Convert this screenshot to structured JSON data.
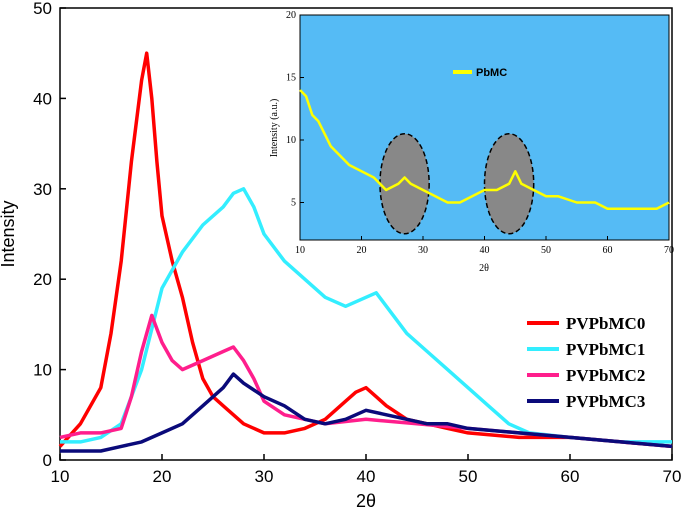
{
  "chart_data": [
    {
      "type": "line",
      "xlabel": "2θ",
      "ylabel": "Intensity",
      "xlim": [
        10,
        70
      ],
      "ylim": [
        0,
        50
      ],
      "xticks": [
        "10",
        "20",
        "30",
        "40",
        "50",
        "60",
        "70"
      ],
      "yticks": [
        "0",
        "10",
        "20",
        "30",
        "40",
        "50"
      ],
      "legend_position": "right-middle",
      "series": [
        {
          "name": "PVPbMC0",
          "color": "#ff0000",
          "x": [
            10,
            12,
            14,
            15,
            16,
            17,
            18,
            18.5,
            19,
            19.5,
            20,
            21,
            22,
            23,
            24,
            25,
            26,
            28,
            30,
            32,
            34,
            36,
            38,
            39,
            40,
            41,
            42,
            44,
            46,
            48,
            50,
            55,
            60,
            65,
            70
          ],
          "y": [
            1.5,
            4,
            8,
            14,
            22,
            33,
            42,
            45,
            40,
            33,
            27,
            22,
            18,
            13,
            9,
            7,
            6,
            4,
            3,
            3,
            3.5,
            4.5,
            6.5,
            7.5,
            8,
            7,
            6,
            4.5,
            4,
            3.5,
            3,
            2.5,
            2.5,
            2,
            1.5
          ]
        },
        {
          "name": "PVPbMC1",
          "color": "#33eeff",
          "x": [
            10,
            12,
            14,
            16,
            18,
            20,
            22,
            24,
            26,
            27,
            28,
            29,
            30,
            32,
            34,
            36,
            38,
            40,
            41,
            42,
            44,
            46,
            48,
            50,
            52,
            54,
            56,
            60,
            65,
            70
          ],
          "y": [
            2,
            2,
            2.5,
            4,
            10,
            19,
            23,
            26,
            28,
            29.5,
            30,
            28,
            25,
            22,
            20,
            18,
            17,
            18,
            18.5,
            17,
            14,
            12,
            10,
            8,
            6,
            4,
            3,
            2.5,
            2,
            2
          ]
        },
        {
          "name": "PVPbMC2",
          "color": "#ff1e8c",
          "x": [
            10,
            12,
            14,
            16,
            17,
            18,
            19,
            20,
            21,
            22,
            24,
            26,
            27,
            28,
            29,
            30,
            32,
            34,
            36,
            40,
            45,
            50,
            55,
            60,
            65,
            70
          ],
          "y": [
            2.5,
            3,
            3,
            3.5,
            7,
            12,
            16,
            13,
            11,
            10,
            11,
            12,
            12.5,
            11,
            9,
            6.5,
            5,
            4.5,
            4,
            4.5,
            4,
            3.5,
            3,
            2.5,
            2,
            1.5
          ]
        },
        {
          "name": "PVPbMC3",
          "color": "#0a0a7a",
          "x": [
            10,
            12,
            14,
            16,
            18,
            20,
            22,
            24,
            26,
            27,
            28,
            30,
            32,
            34,
            36,
            38,
            40,
            42,
            44,
            46,
            48,
            50,
            55,
            60,
            65,
            70
          ],
          "y": [
            1,
            1,
            1,
            1.5,
            2,
            3,
            4,
            6,
            8,
            9.5,
            8.5,
            7,
            6,
            4.5,
            4,
            4.5,
            5.5,
            5,
            4.5,
            4,
            4,
            3.5,
            3,
            2.5,
            2,
            1.5
          ]
        }
      ]
    },
    {
      "type": "line",
      "xlabel": "2θ",
      "ylabel": "Intensity (a.u.)",
      "xlim": [
        10,
        70
      ],
      "ylim": [
        2,
        20
      ],
      "xticks": [
        "10",
        "20",
        "30",
        "40",
        "50",
        "60",
        "70"
      ],
      "yticks": [
        "5",
        "10",
        "15",
        "20"
      ],
      "background": "#55bbf5",
      "legend_position": "top-left",
      "series": [
        {
          "name": "PbMC",
          "color": "#ffff00",
          "x": [
            10,
            11,
            12,
            13,
            14,
            15,
            16,
            17,
            18,
            20,
            22,
            24,
            26,
            27,
            28,
            30,
            32,
            34,
            36,
            38,
            40,
            42,
            44,
            45,
            46,
            48,
            50,
            52,
            55,
            58,
            60,
            62,
            65,
            68,
            70
          ],
          "y": [
            14,
            13.5,
            12,
            11.5,
            10.5,
            9.5,
            9,
            8.5,
            8,
            7.5,
            7,
            6,
            6.5,
            7,
            6.5,
            6,
            5.5,
            5,
            5,
            5.5,
            6,
            6,
            6.5,
            7.5,
            6.5,
            6,
            5.5,
            5.5,
            5,
            5,
            4.5,
            4.5,
            4.5,
            4.5,
            5
          ]
        }
      ],
      "highlights": [
        {
          "x_center": 27,
          "y_center": 6.5,
          "x_radius": 4,
          "y_radius": 4,
          "color": "#888888"
        },
        {
          "x_center": 44,
          "y_center": 6.5,
          "x_radius": 4,
          "y_radius": 4,
          "color": "#888888"
        }
      ]
    }
  ]
}
